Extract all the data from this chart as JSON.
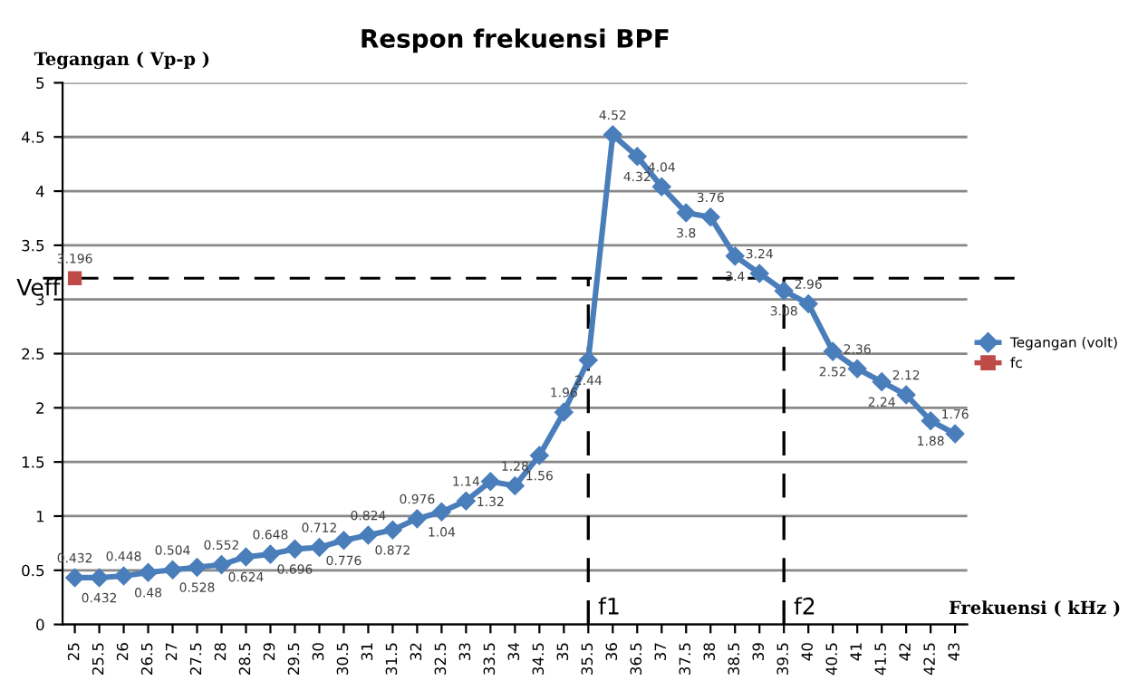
{
  "chart_data": {
    "type": "line",
    "title": "Respon frekuensi BPF",
    "xlabel": "Frekuensi ( kHz )",
    "ylabel": "Tegangan ( Vp-p )",
    "categories": [
      "25",
      "25.5",
      "26",
      "26.5",
      "27",
      "27.5",
      "28",
      "28.5",
      "29",
      "29.5",
      "30",
      "30.5",
      "31",
      "31.5",
      "32",
      "32.5",
      "33",
      "33.5",
      "34",
      "34.5",
      "35",
      "35.5",
      "36",
      "36.5",
      "37",
      "37.5",
      "38",
      "38.5",
      "39",
      "39.5",
      "40",
      "40.5",
      "41",
      "41.5",
      "42",
      "42.5",
      "43"
    ],
    "series": [
      {
        "name": "Tegangan (volt)",
        "color": "#4a7ebb",
        "marker": "diamond",
        "values": [
          0.432,
          0.432,
          0.448,
          0.48,
          0.504,
          0.528,
          0.552,
          0.624,
          0.648,
          0.696,
          0.712,
          0.776,
          0.824,
          0.872,
          0.976,
          1.04,
          1.14,
          1.32,
          1.28,
          1.56,
          1.96,
          2.44,
          4.52,
          4.32,
          4.04,
          3.8,
          3.76,
          3.4,
          3.24,
          3.08,
          2.96,
          2.52,
          2.36,
          2.24,
          2.12,
          1.88,
          1.76
        ]
      },
      {
        "name": "fc",
        "color": "#be4b48",
        "marker": "square",
        "values": [
          3.196,
          null,
          null,
          null,
          null,
          null,
          null,
          null,
          null,
          null,
          null,
          null,
          null,
          null,
          null,
          null,
          null,
          null,
          null,
          null,
          null,
          null,
          null,
          null,
          null,
          null,
          null,
          null,
          null,
          null,
          null,
          null,
          null,
          null,
          null,
          null,
          null
        ]
      }
    ],
    "ylim": [
      0,
      5
    ],
    "yticks": [
      0,
      0.5,
      1,
      1.5,
      2,
      2.5,
      3,
      3.5,
      4,
      4.5,
      5
    ],
    "ref_lines": [
      {
        "axis": "y",
        "value": 3.196,
        "label": "Veff",
        "color": "#000000",
        "line_style": "dashed"
      },
      {
        "axis": "x",
        "value": "35.5",
        "label": "f1",
        "color": "#000000",
        "line_style": "dashed"
      },
      {
        "axis": "x",
        "value": "39.5",
        "label": "f2",
        "color": "#000000",
        "line_style": "dashed"
      }
    ],
    "data_labels": true,
    "grid": "y",
    "legend": "right"
  }
}
